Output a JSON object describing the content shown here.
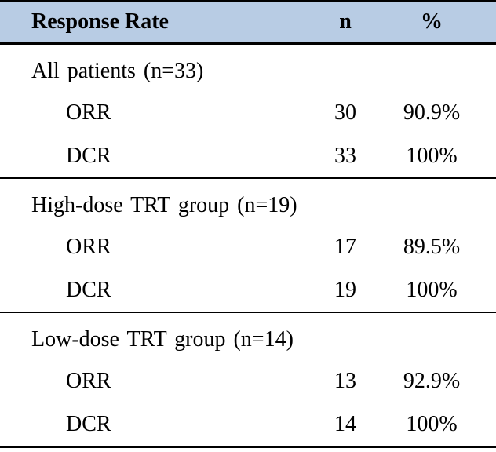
{
  "colors": {
    "header_bg": "#b8cce4",
    "rule": "#000000",
    "text": "#000000",
    "page_bg": "#ffffff"
  },
  "table": {
    "header": {
      "label": "Response Rate",
      "n": "n",
      "pct": "%"
    },
    "sections": [
      {
        "title": "All patients (n=33)",
        "rows": [
          {
            "label": "ORR",
            "n": "30",
            "pct": "90.9%"
          },
          {
            "label": "DCR",
            "n": "33",
            "pct": "100%"
          }
        ]
      },
      {
        "title": "High-dose TRT group (n=19)",
        "rows": [
          {
            "label": "ORR",
            "n": "17",
            "pct": "89.5%"
          },
          {
            "label": "DCR",
            "n": "19",
            "pct": "100%"
          }
        ]
      },
      {
        "title": "Low-dose TRT group (n=14)",
        "rows": [
          {
            "label": "ORR",
            "n": "13",
            "pct": "92.9%"
          },
          {
            "label": "DCR",
            "n": "14",
            "pct": "100%"
          }
        ]
      }
    ]
  }
}
